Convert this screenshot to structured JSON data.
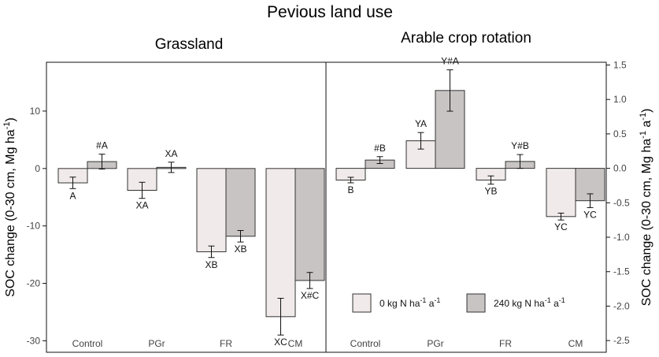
{
  "title": "Pevious land use",
  "legend": {
    "item0_main": "0 kg N ha",
    "item0_sup1": "-1",
    "item0_mid": " a",
    "item0_sup2": "-1",
    "item1_main": "240 kg N ha",
    "item1_sup1": "-1",
    "item1_mid": " a",
    "item1_sup2": "-1"
  },
  "left_axis": {
    "main": "SOC change (0-30 cm, Mg ha",
    "sup": "-1",
    "end": ")"
  },
  "right_axis": {
    "main": "SOC change (0-30 cm, Mg ha",
    "sup1": "-1",
    "mid": " a",
    "sup2": "-1",
    "end": ")"
  },
  "colors": {
    "series0": "#f0eaea",
    "series1": "#c9c4c4",
    "stroke": "#333333"
  },
  "chart_data": [
    {
      "type": "bar",
      "title": "Grassland",
      "categories": [
        "Control",
        "PGr",
        "FR",
        "CM"
      ],
      "ylim": [
        -32,
        18.5
      ],
      "yticks": [
        -30,
        -20,
        -10,
        0,
        10
      ],
      "tick_labels": [
        "-30",
        "-20",
        "-10",
        "0",
        "10"
      ],
      "series": [
        {
          "name": "0 kg N ha-1 a-1",
          "values": [
            -2.5,
            -3.8,
            -14.5,
            -25.8
          ],
          "errors": [
            1.0,
            1.4,
            1.0,
            3.2
          ],
          "labels": [
            "A",
            "XA",
            "XB",
            "XC"
          ]
        },
        {
          "name": "240 kg N ha-1 a-1",
          "values": [
            1.2,
            0.2,
            -11.8,
            -19.5
          ],
          "errors": [
            1.3,
            0.9,
            1.0,
            1.4
          ],
          "labels": [
            "#A",
            "XA",
            "XB",
            "X#C"
          ]
        }
      ]
    },
    {
      "type": "bar",
      "title": "Arable crop rotation",
      "categories": [
        "Control",
        "PGr",
        "FR",
        "CM"
      ],
      "ylim": [
        -2.67,
        1.54
      ],
      "yticks": [
        -2.5,
        -2.0,
        -1.5,
        -1.0,
        -0.5,
        0.0,
        0.5,
        1.0,
        1.5
      ],
      "tick_labels": [
        "-2.5",
        "-2.0",
        "-1.5",
        "-1.0",
        "-0.5",
        "0.0",
        "0.5",
        "1.0",
        "1.5"
      ],
      "series": [
        {
          "name": "0 kg N ha-1 a-1",
          "values": [
            -0.17,
            0.4,
            -0.17,
            -0.7
          ],
          "errors": [
            0.04,
            0.12,
            0.06,
            0.05
          ],
          "labels": [
            "B",
            "YA",
            "YB",
            "YC"
          ]
        },
        {
          "name": "240 kg N ha-1 a-1",
          "values": [
            0.12,
            1.13,
            0.1,
            -0.47
          ],
          "errors": [
            0.05,
            0.3,
            0.1,
            0.1
          ],
          "labels": [
            "#B",
            "Y#A",
            "Y#B",
            "YC"
          ]
        }
      ]
    }
  ]
}
